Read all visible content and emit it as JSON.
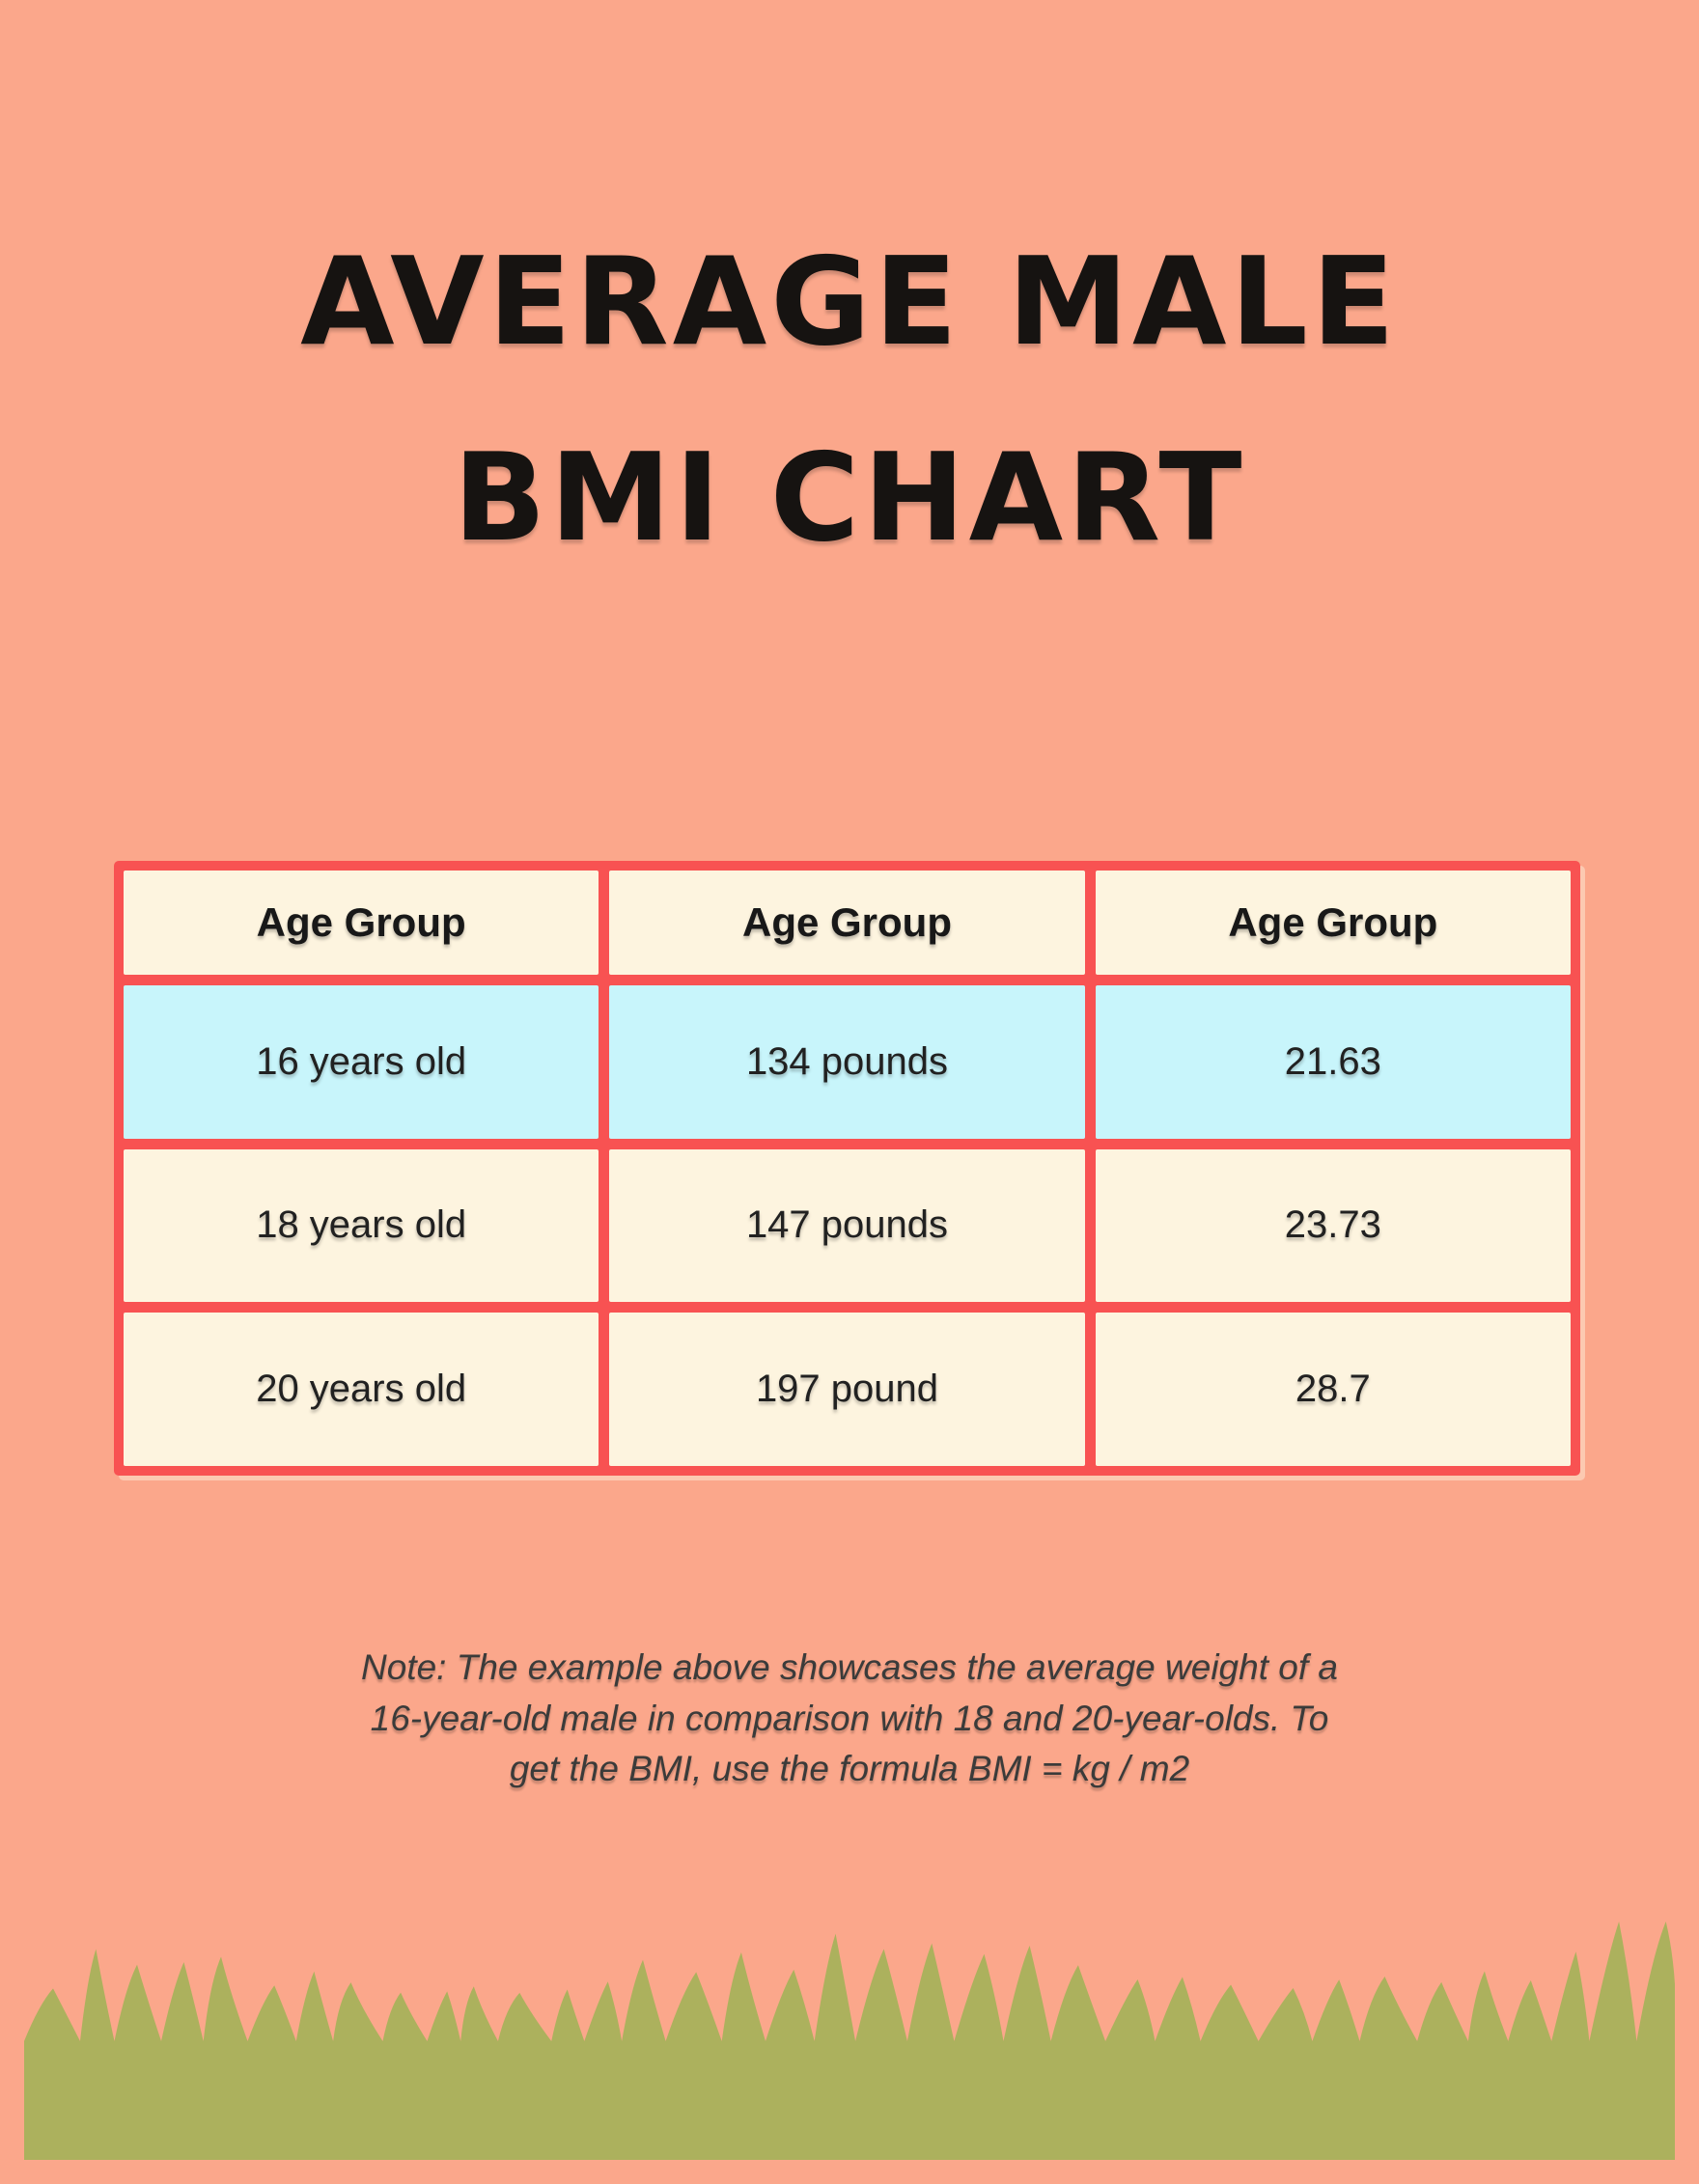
{
  "title": {
    "line1": "AVERAGE MALE",
    "line2": "BMI CHART"
  },
  "note": {
    "lines": [
      "Note: The example above showcases the average weight of a",
      "16-year-old male in comparison with 18 and 20-year-olds. To",
      "get the BMI, use the formula BMI = kg / m2"
    ]
  },
  "chart_data": {
    "type": "table",
    "title": "AVERAGE MALE BMI CHART",
    "columns": [
      "Age Group",
      "Age Group",
      "Age Group"
    ],
    "rows": [
      [
        "16 years old",
        "134 pounds",
        "21.63"
      ],
      [
        "18 years old",
        "147 pounds",
        "23.73"
      ],
      [
        "20 years old",
        "197 pound",
        "28.7"
      ]
    ],
    "highlighted_row": 0,
    "note": "Note: The example above showcases the average weight of a 16-year-old male in comparison with 18 and 20-year-olds. To get the BMI, use the formula BMI = kg / m2"
  },
  "colors": {
    "bg": "#FBA78B",
    "red": "#F85252",
    "cream": "#FDF4DF",
    "blue": "#C8F5FB",
    "grass": "#ACB15D",
    "ink": "#161311",
    "cell-ink": "#212121",
    "note-ink": "#3B3B3A"
  }
}
